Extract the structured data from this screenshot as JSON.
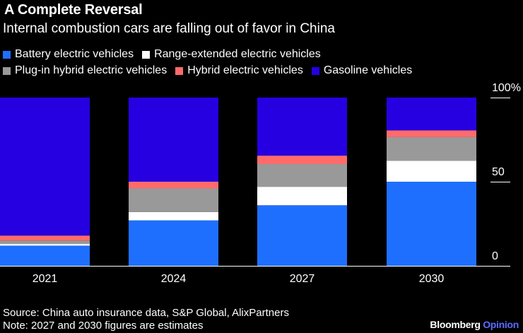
{
  "chart_data": {
    "type": "bar",
    "stacked": true,
    "title": "A Complete Reversal",
    "subtitle": "Internal combustion cars are falling out of favor in China",
    "categories": [
      "2021",
      "2024",
      "2027",
      "2030"
    ],
    "series": [
      {
        "name": "Battery electric vehicles",
        "color": "#1f6fff",
        "values": [
          12,
          27,
          36,
          50
        ]
      },
      {
        "name": "Range-extended electric vehicles",
        "color": "#ffffff",
        "values": [
          1,
          5,
          11,
          12.5
        ]
      },
      {
        "name": "Plug-in hybrid electric vehicles",
        "color": "#999999",
        "values": [
          2,
          14,
          13.5,
          14
        ]
      },
      {
        "name": "Hybrid electric vehicles",
        "color": "#ff6b6b",
        "values": [
          3,
          4,
          5,
          4
        ]
      },
      {
        "name": "Gasoline vehicles",
        "color": "#2600e0",
        "values": [
          82,
          50,
          34.5,
          19.5
        ]
      }
    ],
    "ylim": [
      0,
      100
    ],
    "yticks": [
      {
        "value": 0,
        "label": "0"
      },
      {
        "value": 50,
        "label": "50"
      },
      {
        "value": 100,
        "label": "100%"
      }
    ],
    "xlabel": "",
    "ylabel": ""
  },
  "footer": {
    "source": "Source: China auto insurance data, S&P Global, AlixPartners",
    "note": "Note: 2027 and 2030 figures are estimates",
    "brand_main": "Bloomberg",
    "brand_sub": "Opinion"
  }
}
